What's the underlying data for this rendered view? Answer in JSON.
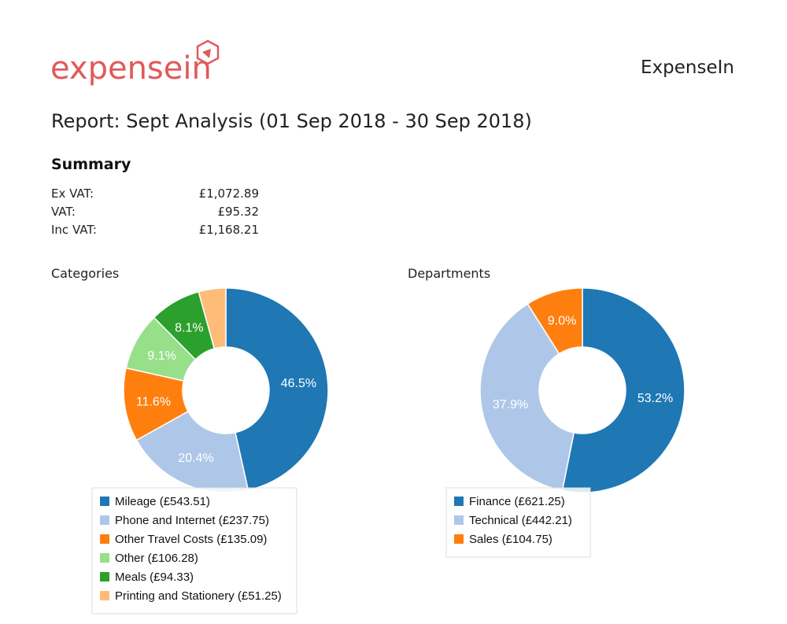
{
  "header": {
    "logo": "expensein",
    "company": "ExpenseIn"
  },
  "report_title": "Report: Sept Analysis (01 Sep 2018 - 30 Sep 2018)",
  "summary": {
    "title": "Summary",
    "rows": [
      [
        "Ex VAT:",
        "£1,072.89"
      ],
      [
        "VAT:",
        "£95.32"
      ],
      [
        "Inc VAT:",
        "£1,168.21"
      ]
    ]
  },
  "chart_data": [
    {
      "type": "pie",
      "title": "Categories",
      "categories": [
        "Mileage (£543.51)",
        "Phone and Internet (£237.75)",
        "Other Travel Costs (£135.09)",
        "Other (£106.28)",
        "Meals (£94.33)",
        "Printing and Stationery (£51.25)"
      ],
      "values": [
        46.5,
        20.4,
        11.6,
        9.1,
        8.1,
        4.3
      ],
      "value_labels": [
        "46.5%",
        "20.4%",
        "11.6%",
        "9.1%",
        "8.1%",
        null
      ],
      "colors": [
        "#1f77b4",
        "#aec7e8",
        "#ff7f0e",
        "#98df8a",
        "#2ca02c",
        "#ffbb78"
      ]
    },
    {
      "type": "pie",
      "title": "Departments",
      "categories": [
        "Finance (£621.25)",
        "Technical (£442.21)",
        "Sales (£104.75)"
      ],
      "values": [
        53.2,
        37.9,
        9.0
      ],
      "value_labels": [
        "53.2%",
        "37.9%",
        "9.0%"
      ],
      "colors": [
        "#1f77b4",
        "#aec7e8",
        "#ff7f0e"
      ]
    }
  ]
}
